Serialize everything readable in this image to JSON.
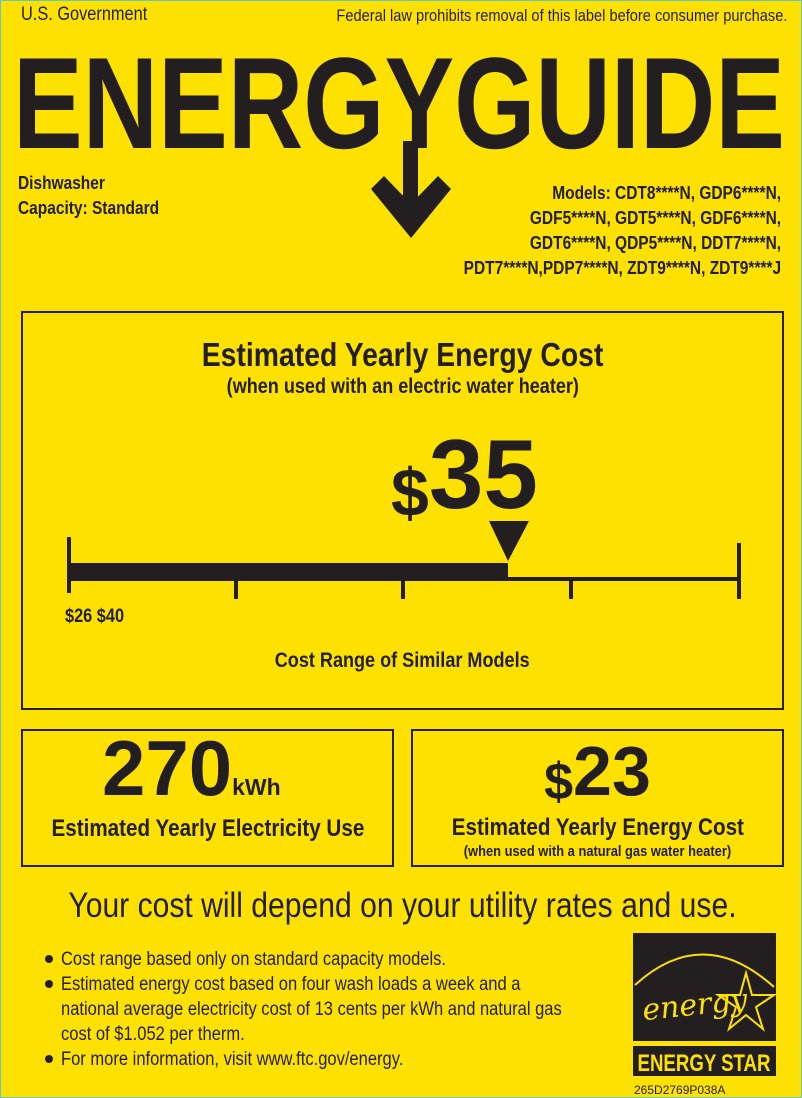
{
  "header": {
    "issuer": "U.S. Government",
    "notice": "Federal law prohibits removal of this label before consumer purchase.",
    "title": "ENERGYGUIDE"
  },
  "product": {
    "type": "Dishwasher",
    "capacity": "Capacity: Standard",
    "models": [
      "Models: CDT8****N, GDP6****N,",
      "GDF5****N, GDT5****N, GDF6****N,",
      "GDT6****N, QDP5****N, DDT7****N,",
      "PDT7****N,PDP7****N, ZDT9****N, ZDT9****J"
    ]
  },
  "main_cost": {
    "title": "Estimated Yearly Energy Cost",
    "subtitle": "(when used with an electric water heater)",
    "currency": "$",
    "amount": "35",
    "value": 35,
    "range_min": 26,
    "range_max": 40,
    "range_label": "$26 $40",
    "range_caption": "Cost Range of Similar Models"
  },
  "electricity": {
    "value": "270",
    "unit": "kWh",
    "label": "Estimated Yearly Electricity Use"
  },
  "gas_cost": {
    "currency": "$",
    "amount": "23",
    "label": "Estimated Yearly Energy Cost",
    "sublabel": "(when used with a natural gas water heater)"
  },
  "disclaimer": "Your cost will depend on your utility rates and use.",
  "bullets": [
    [
      "Cost range based only on standard capacity models."
    ],
    [
      "Estimated energy cost based on four wash loads a week and a",
      "national average electricity cost of 13 cents per kWh and natural gas",
      "cost of $1.052 per therm."
    ],
    [
      "For more information, visit www.ftc.gov/energy."
    ]
  ],
  "energy_star": {
    "script": "energy",
    "label": "ENERGY STAR"
  },
  "label_code": "265D2769P038A",
  "colors": {
    "background": "#FFE100",
    "ink": "#231f20"
  }
}
